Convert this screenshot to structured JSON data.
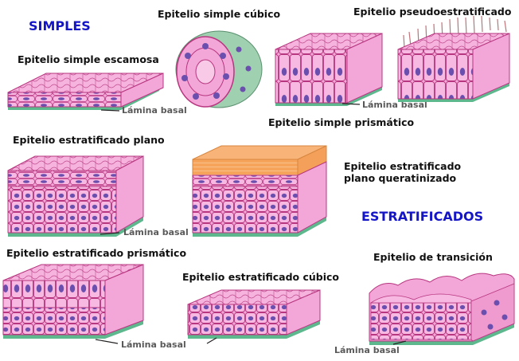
{
  "headings": {
    "simple": "SIMPLES",
    "stratified": "ESTRATIFICADOS"
  },
  "labels": {
    "simple_squamous": "Epitelio simple escamosa",
    "simple_cuboidal": "Epitelio simple cúbico",
    "pseudostratified": "Epitelio pseudoestratificado",
    "simple_columnar": "Epitelio simple prismático",
    "stratified_squamous": "Epitelio estratificado plano",
    "keratinized_line1": "Epitelio estratificado",
    "keratinized_line2": "plano queratinizado",
    "stratified_columnar": "Epitelio estratificado prismático",
    "stratified_cuboidal": "Epitelio estratificado cúbico",
    "transitional": "Epitelio de transición"
  },
  "basal_lamina": "Lámina basal",
  "colors": {
    "heading": "#1515c8",
    "cell_fill": "#f3a6d8",
    "cell_border": "#b7367f",
    "nucleus": "#6b4fae",
    "basal_lamina": "#5db88e",
    "keratin": "#f6a35c",
    "cilia": "#c0737a"
  }
}
